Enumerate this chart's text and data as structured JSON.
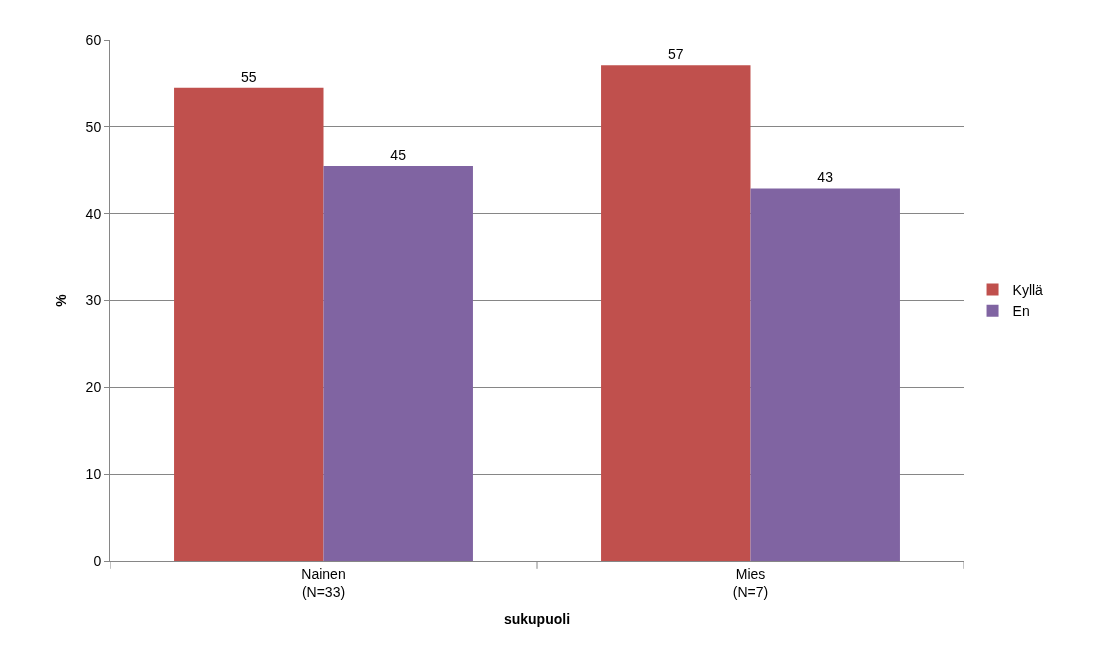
{
  "chart_data": {
    "type": "bar",
    "xlabel": "sukupuoli",
    "ylabel": "%",
    "categories": [
      "Nainen\n(N=33)",
      "Mies\n(N=7)"
    ],
    "series": [
      {
        "name": "Kyllä",
        "color": "#c0504d",
        "values": [
          54.5,
          57.1
        ],
        "value_labels": [
          "55",
          "57"
        ]
      },
      {
        "name": "En",
        "color": "#8064a2",
        "values": [
          45.5,
          42.9
        ],
        "value_labels": [
          "45",
          "43"
        ]
      }
    ],
    "ylim": [
      0,
      60
    ],
    "yticks": [
      0,
      10,
      20,
      30,
      40,
      50,
      60
    ],
    "grid": "y",
    "legend": "right"
  }
}
